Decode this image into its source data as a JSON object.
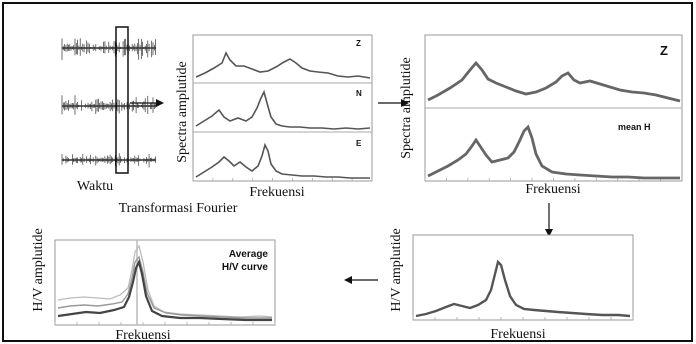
{
  "seismogram": {
    "x_label": "Waktu"
  },
  "transform_label": "Transformasi Fourier",
  "spectra_panel": {
    "y_label": "Spectra amplutide",
    "x_label": "Frekuensi",
    "component_labels": [
      "Z",
      "N",
      "E"
    ]
  },
  "averaged_panel": {
    "y_label": "Spectra amplutide",
    "x_label": "Frekuensi",
    "label_top": "Z",
    "label_bottom": "mean H"
  },
  "hv_panel": {
    "y_label": "H/V amplutide",
    "x_label": "Frekuensi"
  },
  "average_panel": {
    "y_label": "H/V amplutide",
    "x_label": "Frekuensi",
    "legend_line1": "Average",
    "legend_line2": "H/V curve"
  }
}
